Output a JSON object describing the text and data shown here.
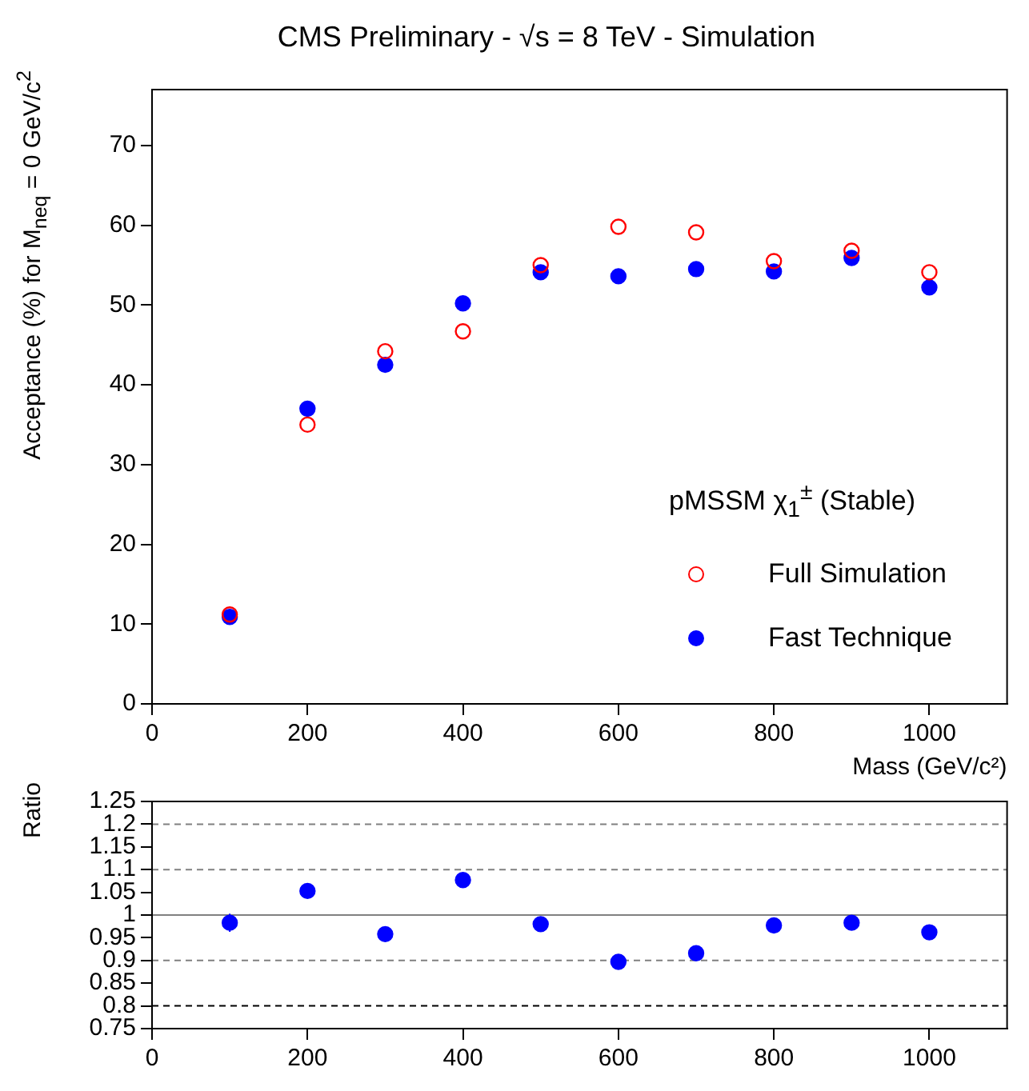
{
  "chart_data": [
    {
      "type": "scatter",
      "title": "CMS Preliminary  -  √s = 8 TeV  -  Simulation",
      "xlabel": "Mass (GeV/c²)",
      "ylabel": "Acceptance (%) for M$_{neq}$ = 0 GeV/c$^{2}$",
      "legend_title": "pMSSM χ$_{1}$$^{±}$ (Stable)",
      "legend": "right",
      "marker": "circle",
      "grid": false,
      "x": [
        100,
        200,
        300,
        400,
        500,
        600,
        700,
        800,
        900,
        1000
      ],
      "xlim": [
        0,
        1100
      ],
      "xticks": [
        0,
        200,
        400,
        600,
        800,
        1000
      ],
      "ylim": [
        0,
        77
      ],
      "yticks": [
        0,
        10,
        20,
        30,
        40,
        50,
        60,
        70
      ],
      "series": [
        {
          "name": "Full Simulation",
          "color": "#ff0000",
          "values": [
            11.2,
            35,
            44.2,
            46.7,
            55,
            59.8,
            59.1,
            55.5,
            56.8,
            54.1
          ]
        },
        {
          "name": "Fast Technique",
          "color": "#0000ff",
          "values": [
            10.9,
            37,
            42.5,
            50.2,
            54.1,
            53.6,
            54.5,
            54.2,
            55.9,
            52.2
          ]
        }
      ]
    },
    {
      "type": "scatter",
      "ylabel": "Ratio",
      "marker": "circle",
      "grid": false,
      "legend": false,
      "x": [
        100,
        200,
        300,
        400,
        500,
        600,
        700,
        800,
        900,
        1000
      ],
      "xlim": [
        0,
        1100
      ],
      "xticks": [
        0,
        200,
        400,
        600,
        800,
        1000
      ],
      "ylim": [
        0.75,
        1.25
      ],
      "yticks": [
        0.75,
        0.8,
        0.85,
        0.9,
        0.95,
        1,
        1.05,
        1.1,
        1.15,
        1.2,
        1.25
      ],
      "series": [
        {
          "color": "#0000ff",
          "values": [
            0.983,
            1.053,
            0.958,
            1.077,
            0.98,
            0.897,
            0.916,
            0.977,
            0.983,
            0.962
          ],
          "errors": [
            0.02,
            0.01,
            0.01,
            0.01,
            0.01,
            0.01,
            0.01,
            0.01,
            0.01,
            0.01
          ]
        }
      ],
      "ref_lines": [
        {
          "axis": "y",
          "value": 1.2,
          "color": "#808080",
          "line_style": "dashed"
        },
        {
          "axis": "y",
          "value": 1.1,
          "color": "#808080",
          "line_style": "dashed"
        },
        {
          "axis": "y",
          "value": 1,
          "color": "#808080",
          "line_style": "solid"
        },
        {
          "axis": "y",
          "value": 0.9,
          "color": "#808080",
          "line_style": "dashed"
        },
        {
          "axis": "y",
          "value": 0.8,
          "color": "#000000",
          "line_style": "dashed"
        }
      ]
    }
  ]
}
